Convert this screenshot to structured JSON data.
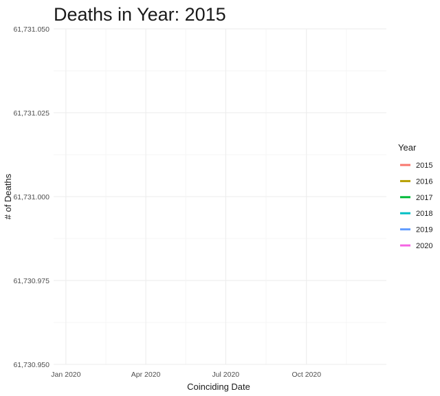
{
  "chart_data": {
    "type": "line",
    "title": "Deaths in Year: 2015",
    "xlabel": "Coinciding Date",
    "ylabel": "# of Deaths",
    "x_ticks": [
      {
        "value": "2020-01-01",
        "label": "Jan 2020"
      },
      {
        "value": "2020-04-01",
        "label": "Apr 2020"
      },
      {
        "value": "2020-07-01",
        "label": "Jul 2020"
      },
      {
        "value": "2020-10-01",
        "label": "Oct 2020"
      }
    ],
    "xlim": [
      "2019-12-18",
      "2020-12-31"
    ],
    "y_ticks": [
      {
        "value": 61730950,
        "label": "61,730.950"
      },
      {
        "value": 61730975,
        "label": "61,730.975"
      },
      {
        "value": 61731000,
        "label": "61,731.000"
      },
      {
        "value": 61731025,
        "label": "61,731.025"
      },
      {
        "value": 61731050,
        "label": "61,731.050"
      }
    ],
    "ylim": [
      61730950,
      61731050
    ],
    "grid": true,
    "legend": {
      "title": "Year",
      "position": "right",
      "entries": [
        {
          "label": "2015",
          "color": "#F8766D"
        },
        {
          "label": "2016",
          "color": "#B79F00"
        },
        {
          "label": "2017",
          "color": "#00BA38"
        },
        {
          "label": "2018",
          "color": "#00BFC4"
        },
        {
          "label": "2019",
          "color": "#619CFF"
        },
        {
          "label": "2020",
          "color": "#F564E3"
        }
      ]
    },
    "series": []
  }
}
